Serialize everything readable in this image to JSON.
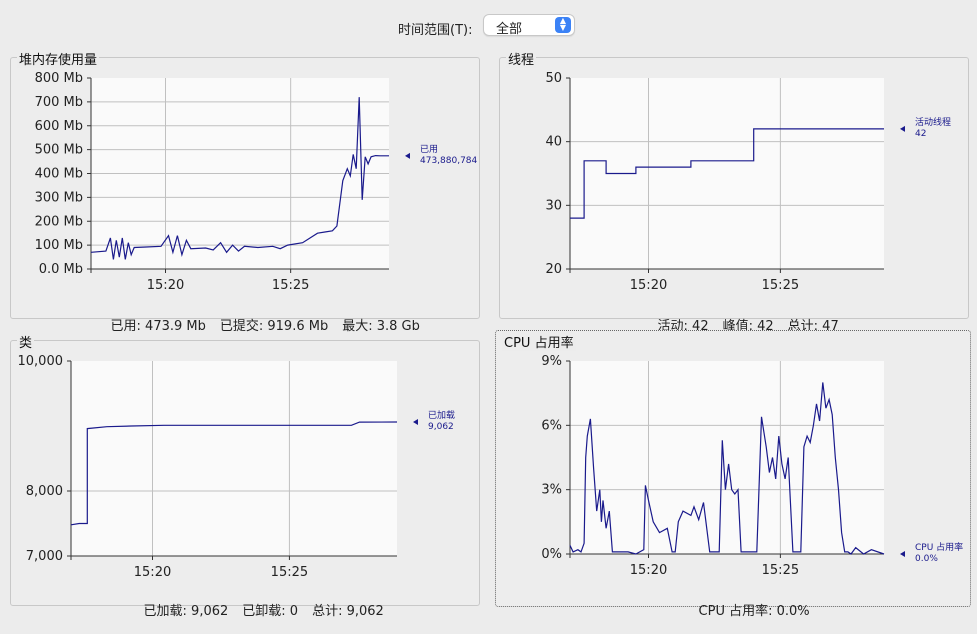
{
  "range": {
    "label": "时间范围(T):",
    "selected": "全部"
  },
  "panels": {
    "heap": {
      "title": "堆内存使用量",
      "footer": [
        "已用: 473.9 Mb",
        "已提交: 919.6 Mb",
        "最大: 3.8 Gb"
      ],
      "legend_name": "已用",
      "legend_value": "473,880,784"
    },
    "threads": {
      "title": "线程",
      "footer": [
        "活动: 42",
        "峰值: 42",
        "总计: 47"
      ],
      "legend_name": "活动线程",
      "legend_value": "42"
    },
    "classes": {
      "title": "类",
      "footer": [
        "已加载: 9,062",
        "已卸载: 0",
        "总计: 9,062"
      ],
      "legend_name": "已加载",
      "legend_value": "9,062"
    },
    "cpu": {
      "title": "CPU 占用率",
      "footer": [
        "CPU 占用率: 0.0%"
      ],
      "legend_name": "CPU 占用率",
      "legend_value": "0.0%"
    }
  },
  "colors": {
    "line": "#1a1a8c",
    "plot_bg": "#fafafa",
    "grid": "#c0c0c0"
  },
  "chart_data": [
    {
      "id": "heap",
      "type": "line",
      "title": "堆内存使用量",
      "ylim": [
        0,
        800
      ],
      "yticks": [
        0,
        100,
        200,
        300,
        400,
        500,
        600,
        700,
        800
      ],
      "ytick_labels": [
        "0.0 Mb",
        "100 Mb",
        "200 Mb",
        "300 Mb",
        "400 Mb",
        "500 Mb",
        "600 Mb",
        "700 Mb",
        "800 Mb"
      ],
      "xlim": [
        15.283,
        15.483
      ],
      "xticks": [
        15.333,
        15.417
      ],
      "xtick_labels": [
        "15:20",
        "15:25"
      ],
      "series": [
        {
          "name": "已用",
          "x": [
            15.283,
            15.293,
            15.296,
            15.298,
            15.3,
            15.302,
            15.304,
            15.306,
            15.308,
            15.31,
            15.312,
            15.32,
            15.33,
            15.335,
            15.338,
            15.341,
            15.344,
            15.347,
            15.35,
            15.36,
            15.365,
            15.37,
            15.374,
            15.378,
            15.382,
            15.386,
            15.395,
            15.405,
            15.41,
            15.415,
            15.425,
            15.43,
            15.435,
            15.44,
            15.445,
            15.448,
            15.452,
            15.455,
            15.457,
            15.459,
            15.461,
            15.463,
            15.465,
            15.467,
            15.469,
            15.471,
            15.474,
            15.477,
            15.483
          ],
          "y": [
            70,
            75,
            130,
            40,
            120,
            50,
            130,
            40,
            110,
            60,
            90,
            92,
            95,
            140,
            70,
            140,
            60,
            120,
            85,
            88,
            80,
            110,
            70,
            100,
            75,
            95,
            90,
            95,
            85,
            100,
            110,
            130,
            150,
            155,
            160,
            180,
            370,
            420,
            390,
            480,
            420,
            720,
            290,
            470,
            440,
            470,
            475,
            474,
            474
          ]
        }
      ]
    },
    {
      "id": "threads",
      "type": "line",
      "title": "线程",
      "ylim": [
        20,
        50
      ],
      "yticks": [
        20,
        30,
        40,
        50
      ],
      "ytick_labels": [
        "20",
        "30",
        "40",
        "50"
      ],
      "xlim": [
        15.283,
        15.483
      ],
      "xticks": [
        15.333,
        15.417
      ],
      "xtick_labels": [
        "15:20",
        "15:25"
      ],
      "series": [
        {
          "name": "活动线程",
          "x": [
            15.283,
            15.292,
            15.292,
            15.306,
            15.306,
            15.325,
            15.325,
            15.36,
            15.36,
            15.4,
            15.4,
            15.483
          ],
          "y": [
            28,
            28,
            37,
            37,
            35,
            35,
            36,
            36,
            37,
            37,
            42,
            42
          ]
        }
      ]
    },
    {
      "id": "classes",
      "type": "line",
      "title": "类",
      "ylim": [
        7000,
        10000
      ],
      "yticks": [
        7000,
        8000,
        10000
      ],
      "ytick_labels": [
        "7,000",
        "8,000",
        "10,000"
      ],
      "xlim": [
        15.283,
        15.483
      ],
      "xticks": [
        15.333,
        15.417
      ],
      "xtick_labels": [
        "15:20",
        "15:25"
      ],
      "series": [
        {
          "name": "已加载",
          "x": [
            15.283,
            15.288,
            15.293,
            15.293,
            15.305,
            15.32,
            15.34,
            15.4,
            15.455,
            15.46,
            15.483
          ],
          "y": [
            7480,
            7500,
            7500,
            8960,
            8990,
            9000,
            9010,
            9010,
            9010,
            9060,
            9062
          ]
        }
      ]
    },
    {
      "id": "cpu",
      "type": "line",
      "title": "CPU 占用率",
      "ylim": [
        0,
        9
      ],
      "yticks": [
        0,
        3,
        6,
        9
      ],
      "ytick_labels": [
        "0%",
        "3%",
        "6%",
        "9%"
      ],
      "xlim": [
        15.283,
        15.483
      ],
      "xticks": [
        15.333,
        15.417
      ],
      "xtick_labels": [
        "15:20",
        "15:25"
      ],
      "series": [
        {
          "name": "CPU 占用率",
          "x": [
            15.283,
            15.285,
            15.288,
            15.29,
            15.292,
            15.293,
            15.294,
            15.296,
            15.298,
            15.3,
            15.302,
            15.303,
            15.304,
            15.306,
            15.308,
            15.31,
            15.32,
            15.325,
            15.33,
            15.331,
            15.333,
            15.336,
            15.34,
            15.345,
            15.348,
            15.35,
            15.352,
            15.355,
            15.36,
            15.362,
            15.365,
            15.368,
            15.372,
            15.374,
            15.376,
            15.378,
            15.38,
            15.382,
            15.384,
            15.386,
            15.388,
            15.39,
            15.392,
            15.394,
            15.396,
            15.398,
            15.4,
            15.402,
            15.405,
            15.408,
            15.41,
            15.412,
            15.414,
            15.416,
            15.418,
            15.42,
            15.422,
            15.425,
            15.428,
            15.43,
            15.432,
            15.434,
            15.436,
            15.438,
            15.44,
            15.442,
            15.444,
            15.446,
            15.448,
            15.45,
            15.452,
            15.454,
            15.456,
            15.458,
            15.46,
            15.462,
            15.465,
            15.47,
            15.475,
            15.483
          ],
          "y": [
            0.4,
            0.1,
            0.2,
            0.1,
            0.5,
            4.5,
            5.5,
            6.3,
            4.0,
            2.0,
            3.0,
            1.5,
            2.5,
            1.2,
            2.0,
            0.1,
            0.1,
            0.0,
            0.2,
            3.2,
            2.5,
            1.5,
            1.0,
            1.2,
            0.1,
            0.1,
            1.5,
            2.0,
            1.8,
            2.2,
            1.6,
            2.4,
            0.1,
            0.1,
            0.1,
            0.1,
            5.3,
            3.0,
            4.2,
            3.0,
            2.8,
            3.0,
            0.1,
            0.1,
            0.1,
            0.1,
            0.1,
            0.1,
            6.4,
            5.0,
            3.8,
            4.5,
            3.5,
            5.5,
            4.2,
            3.5,
            4.5,
            0.1,
            0.1,
            0.1,
            5.0,
            5.5,
            5.2,
            6.0,
            7.0,
            6.2,
            8.0,
            6.8,
            7.2,
            6.5,
            4.5,
            3.0,
            1.0,
            0.1,
            0.1,
            0.0,
            0.3,
            0.0,
            0.2,
            0.0
          ]
        }
      ]
    }
  ]
}
